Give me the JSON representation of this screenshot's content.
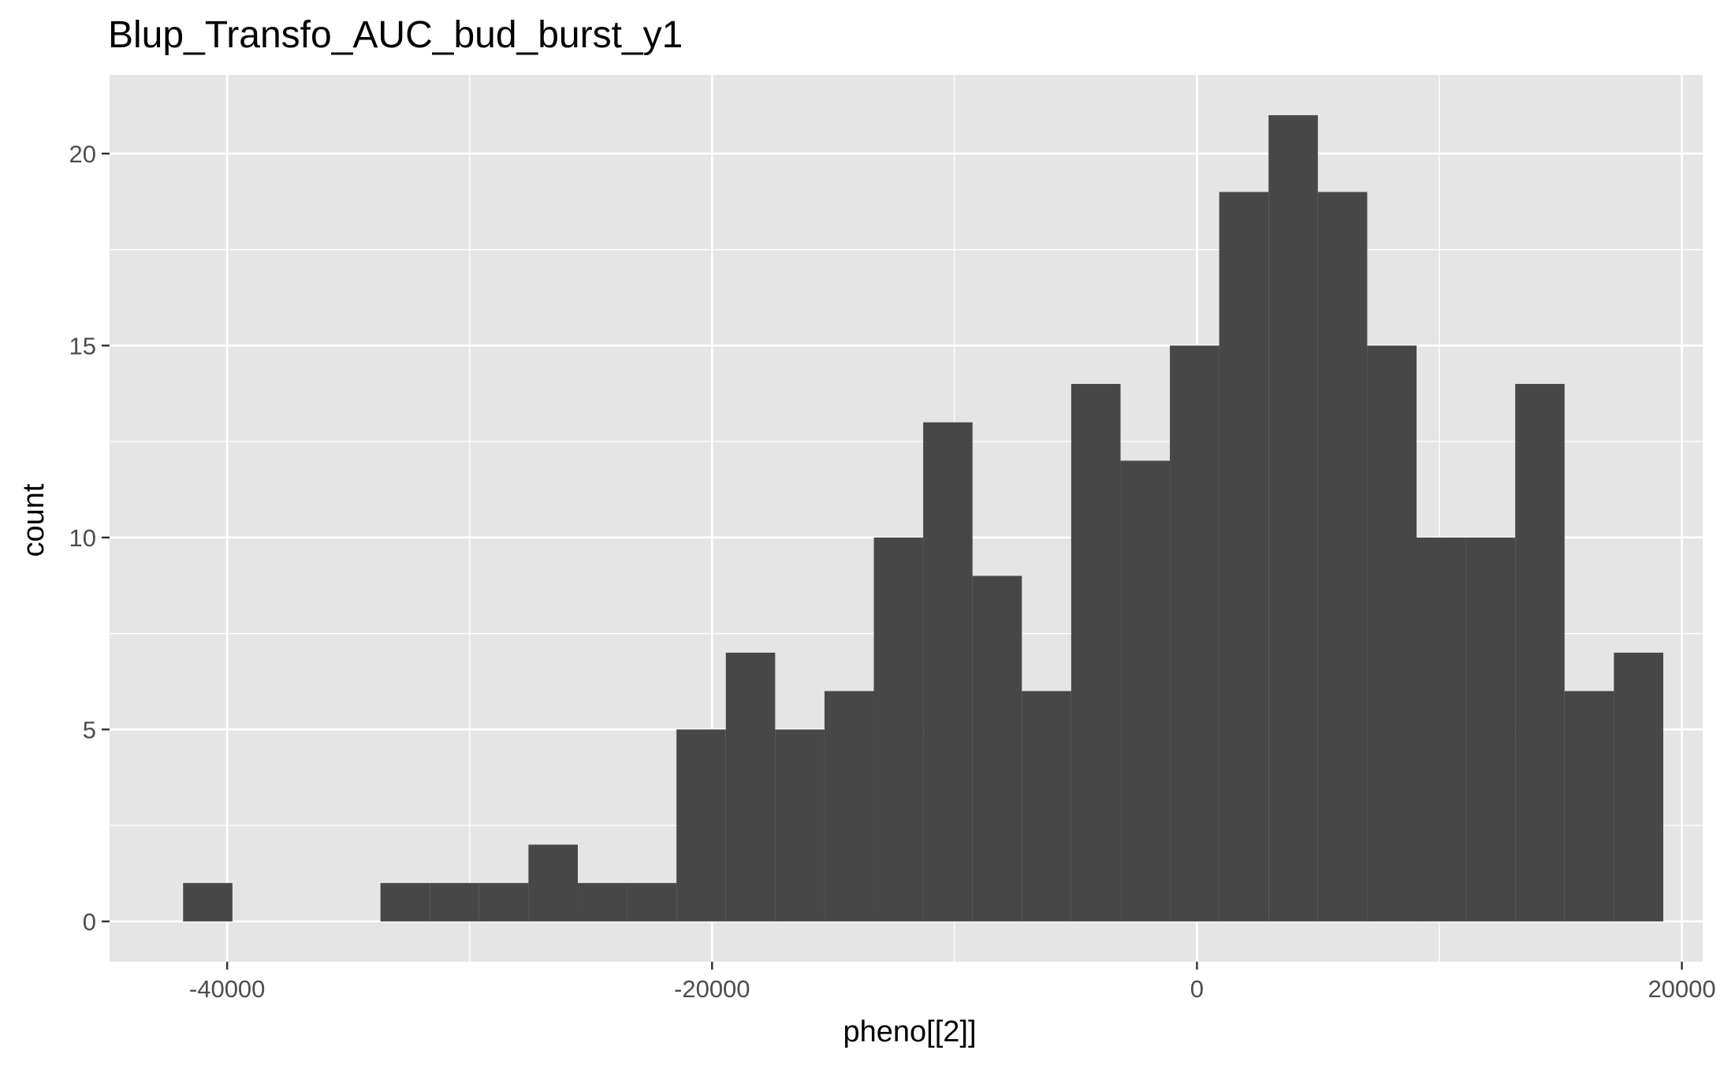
{
  "chart_data": {
    "type": "bar",
    "title": "Blup_Transfo_AUC_bud_burst_y1",
    "xlabel": "pheno[[2]]",
    "ylabel": "count",
    "xlim": [
      -44850,
      20860
    ],
    "ylim": [
      -1.05,
      22.05
    ],
    "x_ticks": [
      {
        "value": -40000,
        "label": "-40000"
      },
      {
        "value": -20000,
        "label": "-20000"
      },
      {
        "value": 0,
        "label": "0"
      },
      {
        "value": 20000,
        "label": "20000"
      }
    ],
    "y_ticks": [
      {
        "value": 0,
        "label": "0"
      },
      {
        "value": 5,
        "label": "5"
      },
      {
        "value": 10,
        "label": "10"
      },
      {
        "value": 15,
        "label": "15"
      },
      {
        "value": 20,
        "label": "20"
      }
    ],
    "x_minor_breaks": [
      -30000,
      -10000,
      10000
    ],
    "y_minor_breaks": [
      2.5,
      7.5,
      12.5,
      17.5
    ],
    "grid": true,
    "bin_width": 2035,
    "bins": [
      {
        "x": -40800,
        "count": 1
      },
      {
        "x": -38765,
        "count": 0
      },
      {
        "x": -36730,
        "count": 0
      },
      {
        "x": -34695,
        "count": 0
      },
      {
        "x": -32660,
        "count": 1
      },
      {
        "x": -30625,
        "count": 1
      },
      {
        "x": -28590,
        "count": 1
      },
      {
        "x": -26555,
        "count": 2
      },
      {
        "x": -24520,
        "count": 1
      },
      {
        "x": -22485,
        "count": 1
      },
      {
        "x": -20450,
        "count": 5
      },
      {
        "x": -18415,
        "count": 7
      },
      {
        "x": -16380,
        "count": 5
      },
      {
        "x": -14345,
        "count": 6
      },
      {
        "x": -12310,
        "count": 10
      },
      {
        "x": -10275,
        "count": 13
      },
      {
        "x": -8240,
        "count": 9
      },
      {
        "x": -6205,
        "count": 6
      },
      {
        "x": -4170,
        "count": 14
      },
      {
        "x": -2135,
        "count": 12
      },
      {
        "x": -100,
        "count": 15
      },
      {
        "x": 1935,
        "count": 19
      },
      {
        "x": 3970,
        "count": 21
      },
      {
        "x": 6005,
        "count": 19
      },
      {
        "x": 8040,
        "count": 15
      },
      {
        "x": 10075,
        "count": 10
      },
      {
        "x": 12110,
        "count": 10
      },
      {
        "x": 14145,
        "count": 14
      },
      {
        "x": 16180,
        "count": 6
      },
      {
        "x": 18215,
        "count": 7
      }
    ],
    "colors": {
      "panel_background": "#e5e5e5",
      "grid_line": "#ffffff",
      "bar_fill": "#474747",
      "tick_mark": "#333333",
      "tick_label": "#4d4d4d"
    }
  }
}
